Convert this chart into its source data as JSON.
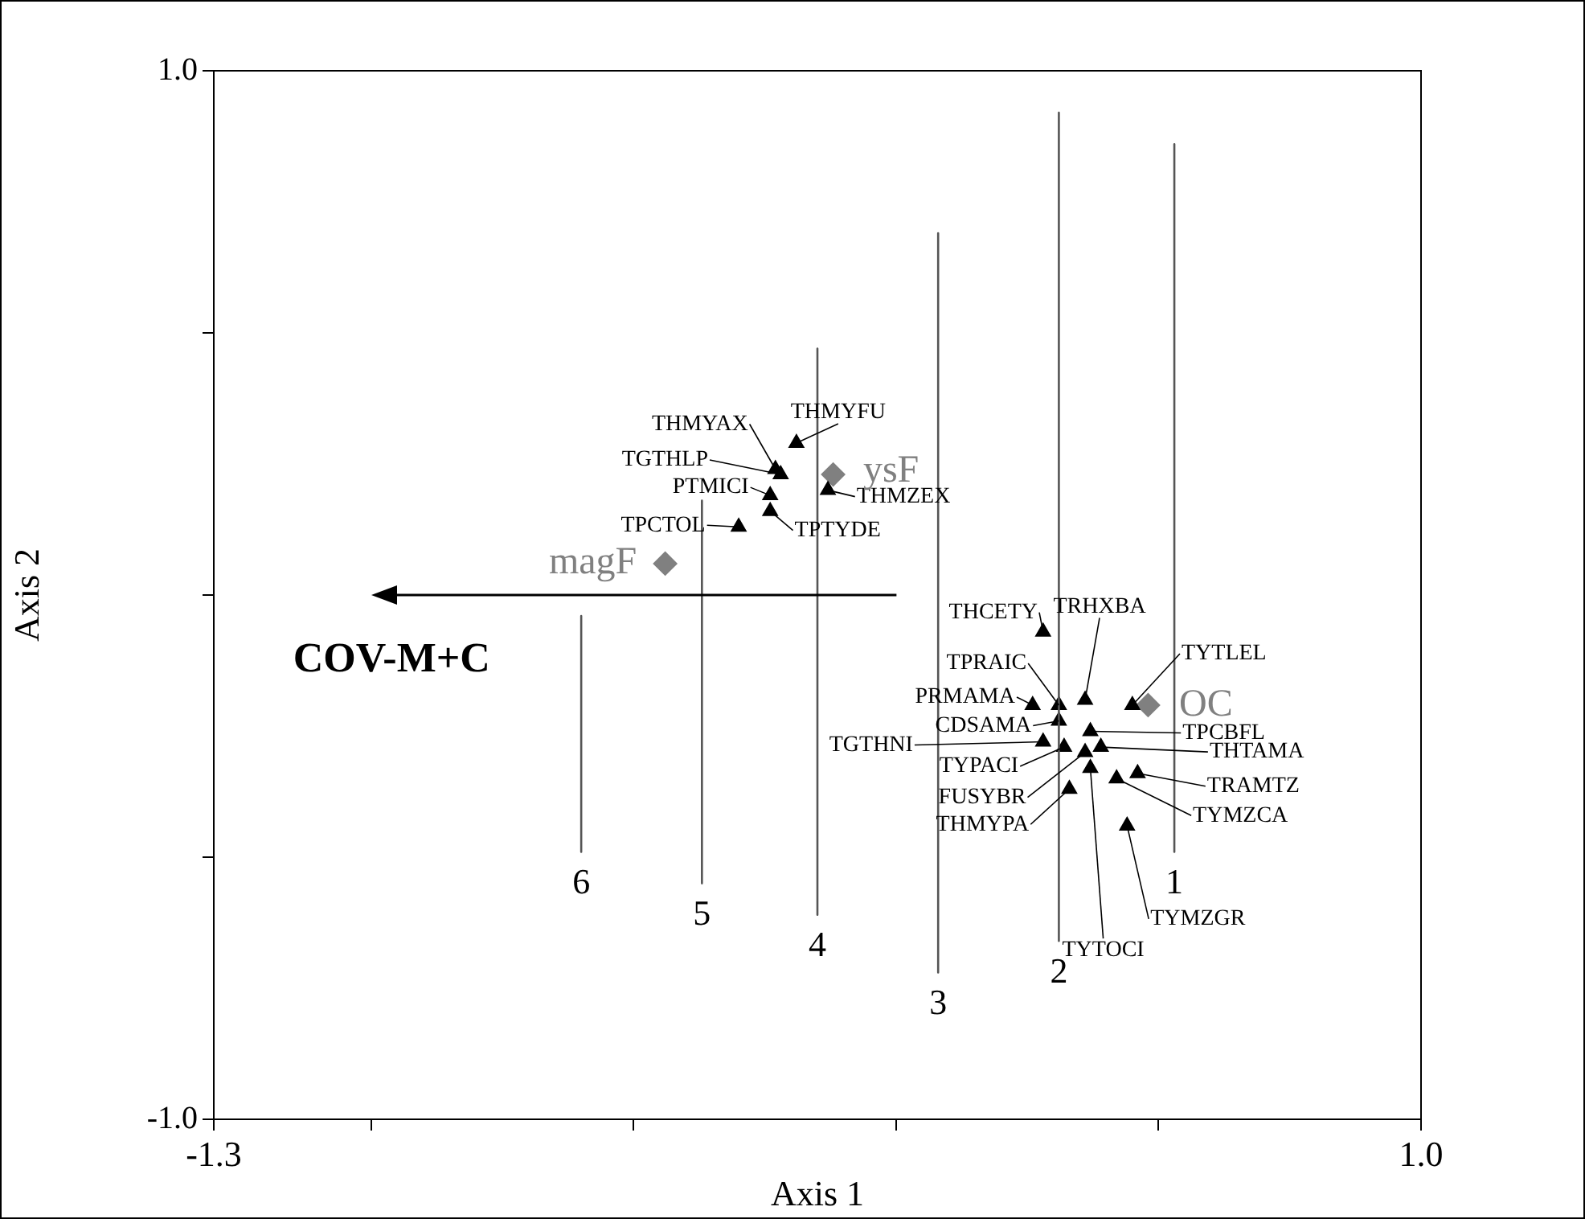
{
  "chart_data": {
    "type": "scatter",
    "xlabel": "Axis 1",
    "ylabel": "Axis 2",
    "xlim": [
      -1.3,
      1.0
    ],
    "xticks": [
      -1.3,
      {
        "value": -1.0,
        "label": null
      },
      {
        "value": -0.5,
        "label": null
      },
      {
        "value": 0,
        "label": null
      },
      {
        "value": 0.5,
        "label": null
      },
      {
        "value": 1.0,
        "label": "1.0"
      }
    ],
    "ylim": [
      -1.0,
      1.0
    ],
    "yticks": [
      {
        "value": -1.0,
        "label": "-1.0"
      },
      {
        "value": -0.5,
        "label": null
      },
      {
        "value": 0,
        "label": null
      },
      {
        "value": 0.5,
        "label": null
      },
      {
        "value": 1.0,
        "label": "1.0"
      }
    ],
    "grid": false,
    "legend": false,
    "annotations": [
      "COV-M+C"
    ],
    "series": [
      {
        "type": "line",
        "name": "1",
        "color": "#555555",
        "x": [
          0.53,
          0.53
        ],
        "values": [
          0.86,
          -0.49
        ]
      },
      {
        "type": "line",
        "name": "2",
        "color": "#555555",
        "x": [
          0.31,
          0.31
        ],
        "values": [
          0.92,
          -0.66
        ]
      },
      {
        "type": "line",
        "name": "3",
        "color": "#555555",
        "x": [
          0.08,
          0.08
        ],
        "values": [
          0.69,
          -0.72
        ]
      },
      {
        "type": "line",
        "name": "4",
        "color": "#555555",
        "x": [
          -0.15,
          -0.15
        ],
        "values": [
          0.47,
          -0.61
        ]
      },
      {
        "type": "line",
        "name": "5",
        "color": "#555555",
        "x": [
          -0.37,
          -0.37
        ],
        "values": [
          0.18,
          -0.55
        ]
      },
      {
        "type": "line",
        "name": "6",
        "color": "#555555",
        "x": [
          -0.6,
          -0.6
        ],
        "values": [
          -0.04,
          -0.49
        ]
      },
      {
        "color": "#000000",
        "marker": "triangle",
        "x": [
          -0.23,
          -0.19,
          -0.22,
          -0.24,
          -0.24,
          -0.13,
          -0.3,
          0.28,
          0.36,
          0.45,
          0.26,
          0.31,
          0.31,
          0.37,
          0.28,
          0.32,
          0.39,
          0.36,
          0.37,
          0.46,
          0.42,
          0.33,
          0.44
        ],
        "values": [
          0.24,
          0.29,
          0.23,
          0.19,
          0.16,
          0.2,
          0.13,
          -0.07,
          -0.2,
          -0.21,
          -0.21,
          -0.21,
          -0.24,
          -0.26,
          -0.28,
          -0.29,
          -0.29,
          -0.3,
          -0.33,
          -0.34,
          -0.35,
          -0.37,
          -0.44
        ],
        "value_labels": [
          "THMYAX",
          "THMYFU",
          "TGTHLP",
          "PTMICI",
          "TPTYDE",
          "THMZEX",
          "TPCTOL",
          "THCETY",
          "TRHXBA",
          "TYTLEL",
          "PRMAMA",
          "TPRAIC",
          "CDSAMA",
          "TPCBFL",
          "TGTHNI",
          "TYPACI",
          "THTAMA",
          "FUSYBR",
          "TYTOCI",
          "TRAMTZ",
          "TYMZCA",
          "THMYPA",
          "TYMZGR"
        ]
      },
      {
        "color": "#808080",
        "marker": "diamond",
        "x": [
          -0.12,
          -0.44,
          0.48
        ],
        "values": [
          0.23,
          0.06,
          -0.21
        ],
        "value_labels": [
          "ysF",
          "magF",
          "OC"
        ]
      }
    ]
  }
}
